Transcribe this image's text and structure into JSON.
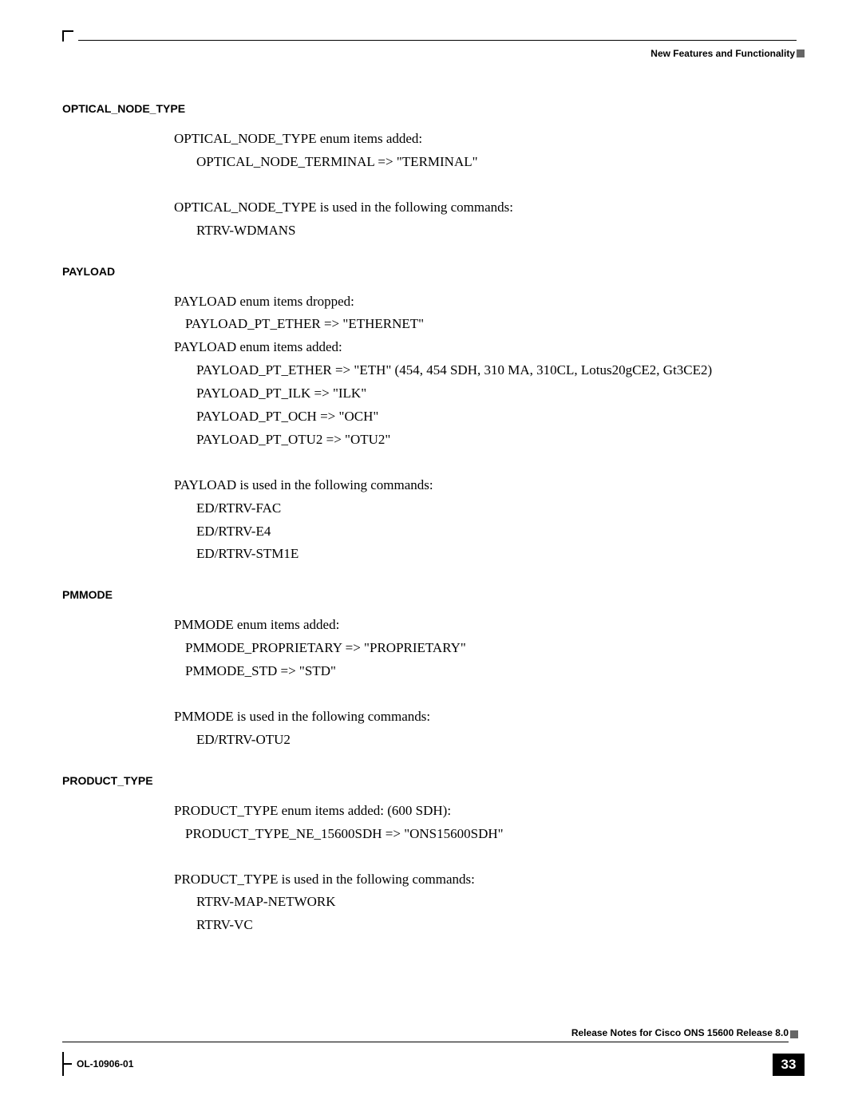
{
  "header": {
    "right_text": "New Features and Functionality"
  },
  "sections": [
    {
      "heading": "OPTICAL_NODE_TYPE",
      "blocks": [
        {
          "lines": [
            {
              "text": "OPTICAL_NODE_TYPE enum items added:",
              "indent": 0
            },
            {
              "text": "OPTICAL_NODE_TERMINAL => \"TERMINAL\"",
              "indent": 1
            }
          ]
        },
        {
          "lines": [
            {
              "text": "OPTICAL_NODE_TYPE is used in the following commands:",
              "indent": 0
            },
            {
              "text": "RTRV-WDMANS",
              "indent": 1
            }
          ]
        }
      ]
    },
    {
      "heading": "PAYLOAD",
      "blocks": [
        {
          "lines": [
            {
              "text": "PAYLOAD enum items dropped:",
              "indent": 0
            },
            {
              "text": "PAYLOAD_PT_ETHER => \"ETHERNET\"",
              "indent": 2
            },
            {
              "text": "PAYLOAD enum items added:",
              "indent": 0
            },
            {
              "text": "PAYLOAD_PT_ETHER => \"ETH\"  (454, 454 SDH, 310 MA, 310CL, Lotus20gCE2, Gt3CE2)",
              "indent": 1
            },
            {
              "text": "PAYLOAD_PT_ILK => \"ILK\"",
              "indent": 1
            },
            {
              "text": "PAYLOAD_PT_OCH => \"OCH\"",
              "indent": 1
            },
            {
              "text": "PAYLOAD_PT_OTU2 => \"OTU2\"",
              "indent": 1
            }
          ]
        },
        {
          "lines": [
            {
              "text": "PAYLOAD is used in the following commands:",
              "indent": 0
            },
            {
              "text": "ED/RTRV-FAC",
              "indent": 1
            },
            {
              "text": "ED/RTRV-E4",
              "indent": 1
            },
            {
              "text": "ED/RTRV-STM1E",
              "indent": 1
            }
          ]
        }
      ]
    },
    {
      "heading": "PMMODE",
      "blocks": [
        {
          "lines": [
            {
              "text": "PMMODE enum items added:",
              "indent": 0
            },
            {
              "text": "PMMODE_PROPRIETARY => \"PROPRIETARY\"",
              "indent": 2
            },
            {
              "text": "PMMODE_STD => \"STD\"",
              "indent": 2
            }
          ]
        },
        {
          "lines": [
            {
              "text": "PMMODE is used in the following commands:",
              "indent": 0
            },
            {
              "text": "ED/RTRV-OTU2",
              "indent": 1
            }
          ]
        }
      ]
    },
    {
      "heading": "PRODUCT_TYPE",
      "blocks": [
        {
          "lines": [
            {
              "text": "PRODUCT_TYPE enum items added: (600 SDH):",
              "indent": 0
            },
            {
              "text": "PRODUCT_TYPE_NE_15600SDH => \"ONS15600SDH\"",
              "indent": 2
            }
          ]
        },
        {
          "lines": [
            {
              "text": "PRODUCT_TYPE is used in the following commands:",
              "indent": 0
            },
            {
              "text": "RTRV-MAP-NETWORK",
              "indent": 1
            },
            {
              "text": "RTRV-VC",
              "indent": 1
            }
          ]
        }
      ]
    }
  ],
  "footer": {
    "title": "Release Notes for Cisco ONS 15600 Release 8.0",
    "docnum": "OL-10906-01",
    "page": "33"
  }
}
